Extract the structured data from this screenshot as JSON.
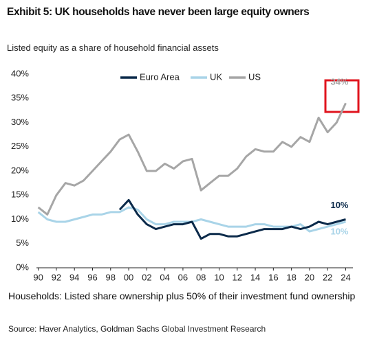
{
  "chart_data": {
    "type": "line",
    "title": "Exhibit 5: UK households have never been large equity owners",
    "subtitle": "Listed equity as a share of household financial assets",
    "footnote": "Households: Listed share ownership plus 50% of their investment fund ownership",
    "source": "Source: Haver Analytics, Goldman Sachs Global Investment Research",
    "x": [
      1990,
      1991,
      1992,
      1993,
      1994,
      1995,
      1996,
      1997,
      1998,
      1999,
      2000,
      2001,
      2002,
      2003,
      2004,
      2005,
      2006,
      2007,
      2008,
      2009,
      2010,
      2011,
      2012,
      2013,
      2014,
      2015,
      2016,
      2017,
      2018,
      2019,
      2020,
      2021,
      2022,
      2023,
      2024
    ],
    "series": [
      {
        "name": "Euro Area",
        "color": "#0b2a4a",
        "end_label": "10%",
        "values": [
          null,
          null,
          null,
          null,
          null,
          null,
          null,
          null,
          null,
          12,
          14,
          11,
          9,
          8,
          8.5,
          9,
          9,
          9.5,
          6,
          7,
          7,
          6.5,
          6.5,
          7,
          7.5,
          8,
          8,
          8,
          8.5,
          8,
          8.5,
          9.5,
          9,
          9.5,
          10
        ]
      },
      {
        "name": "UK",
        "color": "#a9d4e8",
        "end_label": "10%",
        "values": [
          11.5,
          10,
          9.5,
          9.5,
          10,
          10.5,
          11,
          11,
          11.5,
          11.5,
          12.5,
          12,
          10,
          9,
          9,
          9.5,
          9.5,
          9.5,
          10,
          9.5,
          9,
          8.5,
          8.5,
          8.5,
          9,
          9,
          8.5,
          8.5,
          8.5,
          9,
          7.5,
          8,
          8.5,
          9,
          9.5
        ]
      },
      {
        "name": "US",
        "color": "#a6a6a6",
        "end_label": "34%",
        "values": [
          12.5,
          11,
          15,
          17.5,
          17,
          18,
          20,
          22,
          24,
          26.5,
          27.5,
          24,
          20,
          20,
          21.5,
          20.5,
          22,
          22.5,
          16,
          17.5,
          19,
          19,
          20.5,
          23,
          24.5,
          24,
          24,
          26,
          25,
          27,
          26,
          31,
          28,
          30,
          34
        ]
      }
    ],
    "xlim": [
      1989.8,
      2024.8
    ],
    "xticks": [
      {
        "value": 1990,
        "label": "90"
      },
      {
        "value": 1992,
        "label": "92"
      },
      {
        "value": 1994,
        "label": "94"
      },
      {
        "value": 1996,
        "label": "96"
      },
      {
        "value": 1998,
        "label": "98"
      },
      {
        "value": 2000,
        "label": "00"
      },
      {
        "value": 2002,
        "label": "02"
      },
      {
        "value": 2004,
        "label": "04"
      },
      {
        "value": 2006,
        "label": "06"
      },
      {
        "value": 2008,
        "label": "08"
      },
      {
        "value": 2010,
        "label": "10"
      },
      {
        "value": 2012,
        "label": "12"
      },
      {
        "value": 2014,
        "label": "14"
      },
      {
        "value": 2016,
        "label": "16"
      },
      {
        "value": 2018,
        "label": "18"
      },
      {
        "value": 2020,
        "label": "20"
      },
      {
        "value": 2022,
        "label": "22"
      },
      {
        "value": 2024,
        "label": "24"
      }
    ],
    "ylim": [
      0,
      40
    ],
    "yticks": [
      {
        "value": 0,
        "label": "0%"
      },
      {
        "value": 5,
        "label": "5%"
      },
      {
        "value": 10,
        "label": "10%"
      },
      {
        "value": 15,
        "label": "15%"
      },
      {
        "value": 20,
        "label": "20%"
      },
      {
        "value": 25,
        "label": "25%"
      },
      {
        "value": 30,
        "label": "30%"
      },
      {
        "value": 35,
        "label": "35%"
      },
      {
        "value": 40,
        "label": "40%"
      }
    ]
  }
}
